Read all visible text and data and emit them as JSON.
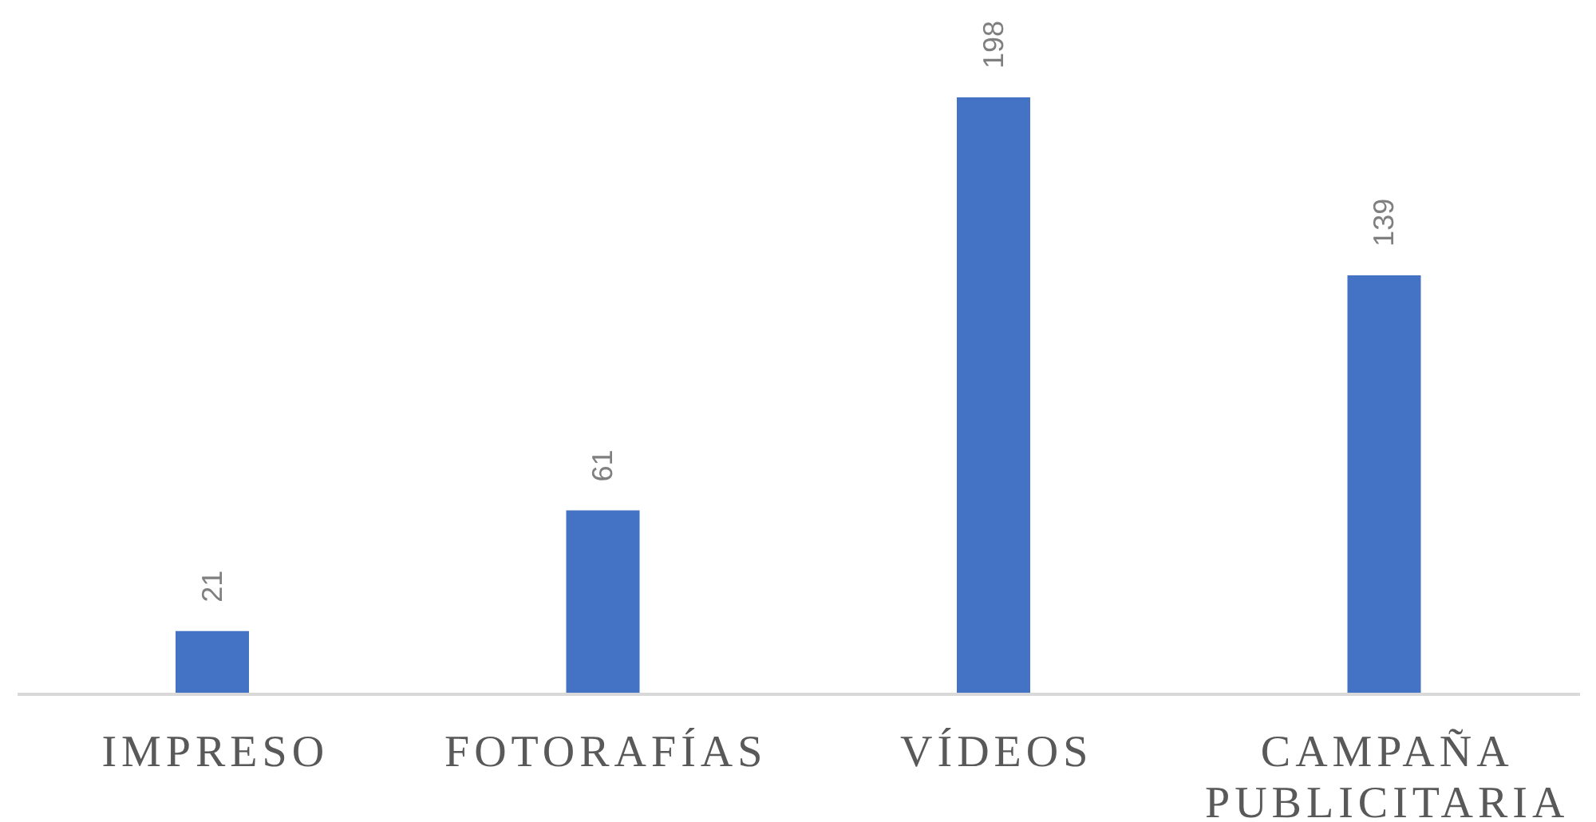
{
  "chart_data": {
    "type": "bar",
    "categories": [
      "IMPRESO",
      "FOTORAFÍAS",
      "VÍDEOS",
      "CAMPAÑA PUBLICITARIA"
    ],
    "values": [
      21,
      61,
      198,
      139
    ],
    "color": "#4472c4",
    "data_labels": true
  }
}
